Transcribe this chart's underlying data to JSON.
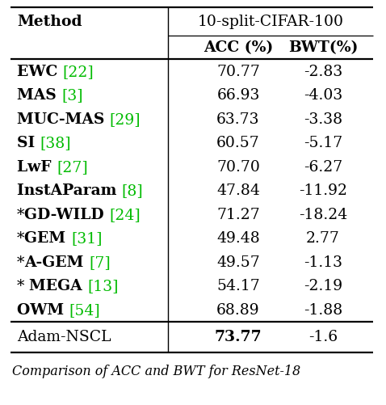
{
  "title": "10-split-CIFAR-100",
  "rows": [
    {
      "method": "EWC",
      "ref": "22",
      "acc": "70.77",
      "bwt": "-2.83",
      "star": "",
      "ref_color": "#00bb00"
    },
    {
      "method": "MAS",
      "ref": "3",
      "acc": "66.93",
      "bwt": "-4.03",
      "star": "",
      "ref_color": "#00bb00"
    },
    {
      "method": "MUC-MAS",
      "ref": "29",
      "acc": "63.73",
      "bwt": "-3.38",
      "star": "",
      "ref_color": "#00bb00"
    },
    {
      "method": "SI",
      "ref": "38",
      "acc": "60.57",
      "bwt": "-5.17",
      "star": "",
      "ref_color": "#00bb00"
    },
    {
      "method": "LwF",
      "ref": "27",
      "acc": "70.70",
      "bwt": "-6.27",
      "star": "",
      "ref_color": "#00bb00"
    },
    {
      "method": "InstAParam",
      "ref": "8",
      "acc": "47.84",
      "bwt": "-11.92",
      "star": "",
      "ref_color": "#00bb00"
    },
    {
      "method": "GD-WILD",
      "ref": "24",
      "acc": "71.27",
      "bwt": "-18.24",
      "star": "*",
      "ref_color": "#00bb00"
    },
    {
      "method": "GEM",
      "ref": "31",
      "acc": "49.48",
      "bwt": "2.77",
      "star": "*",
      "ref_color": "#00bb00"
    },
    {
      "method": "A-GEM",
      "ref": "7",
      "acc": "49.57",
      "bwt": "-1.13",
      "star": "*",
      "ref_color": "#00bb00"
    },
    {
      "method": "MEGA",
      "ref": "13",
      "acc": "54.17",
      "bwt": "-2.19",
      "star": "* ",
      "ref_color": "#00bb00"
    },
    {
      "method": "OWM",
      "ref": "54",
      "acc": "68.89",
      "bwt": "-1.88",
      "star": "",
      "ref_color": "#00bb00"
    }
  ],
  "last_row": {
    "method": "Adam-NSCL",
    "acc": "73.77",
    "bwt": "-1.6"
  },
  "caption": "Comparison of ACC and BWT for ResNet-18",
  "bg_color": "#ffffff",
  "text_color": "#000000",
  "green_color": "#00bb00",
  "figsize": [
    4.78,
    5.02
  ],
  "dpi": 100
}
